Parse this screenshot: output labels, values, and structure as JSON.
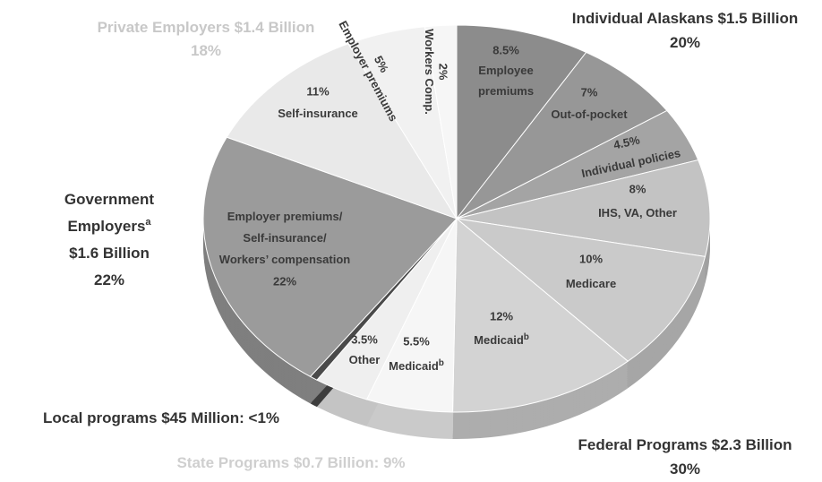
{
  "chart_data": {
    "type": "pie",
    "categories": [
      [
        "Employee",
        "premiums"
      ],
      [
        "Out-of-pocket"
      ],
      [
        "Individual policies"
      ],
      [
        "IHS, VA, Other"
      ],
      [
        "Medicare"
      ],
      [
        "Medicaid"
      ],
      [
        "Medicaid"
      ],
      [
        "Other"
      ],
      null,
      [
        "Employer premiums/",
        "Self-insurance/",
        "Workers’ compensation"
      ],
      [
        "Self-insurance"
      ],
      [
        "Employer premiums"
      ],
      [
        "Workers Comp."
      ]
    ],
    "category_superscripts": [
      null,
      null,
      null,
      null,
      null,
      "b",
      "b",
      null,
      null,
      null,
      null,
      null,
      null
    ],
    "values": [
      8.5,
      7,
      4.5,
      8,
      10,
      12,
      5.5,
      3.5,
      0.5,
      22,
      11,
      5,
      2
    ],
    "value_labels": [
      "8.5%",
      "7%",
      "4.5%",
      "8%",
      "10%",
      "12%",
      "5.5%",
      "3.5%",
      null,
      "22%",
      "11%",
      "5%",
      "2%"
    ],
    "colors": [
      "#8c8c8c",
      "#979797",
      "#a4a4a4",
      "#c3c3c3",
      "#cacaca",
      "#d3d3d3",
      "#f6f6f6",
      "#efefef",
      "#4a4a4a",
      "#9b9b9b",
      "#e9e9e9",
      "#f1f1f1",
      "#f6f6f6"
    ],
    "groups": [
      {
        "lines": [
          "Individual Alaskans $1.5 Billion",
          "20%"
        ],
        "line_superscripts": [
          null,
          null
        ],
        "color": "#333333"
      },
      {
        "lines": [
          "Federal Programs $2.3 Billion",
          "30%"
        ],
        "line_superscripts": [
          null,
          null
        ],
        "color": "#333333"
      },
      {
        "lines": [
          "State Programs $0.7 Billion: 9%"
        ],
        "line_superscripts": [
          null
        ],
        "color": "#cfcfcf"
      },
      {
        "lines": [
          "Local programs $45 Million: <1%"
        ],
        "line_superscripts": [
          null
        ],
        "color": "#333333"
      },
      {
        "lines": [
          "Government",
          "Employers",
          "$1.6 Billion",
          "22%"
        ],
        "line_superscripts": [
          null,
          "a",
          null,
          null
        ],
        "color": "#333333"
      },
      {
        "lines": [
          "Private Employers $1.4 Billion",
          "18%"
        ],
        "line_superscripts": [
          null,
          null
        ],
        "color": "#c8c8c8"
      }
    ]
  }
}
